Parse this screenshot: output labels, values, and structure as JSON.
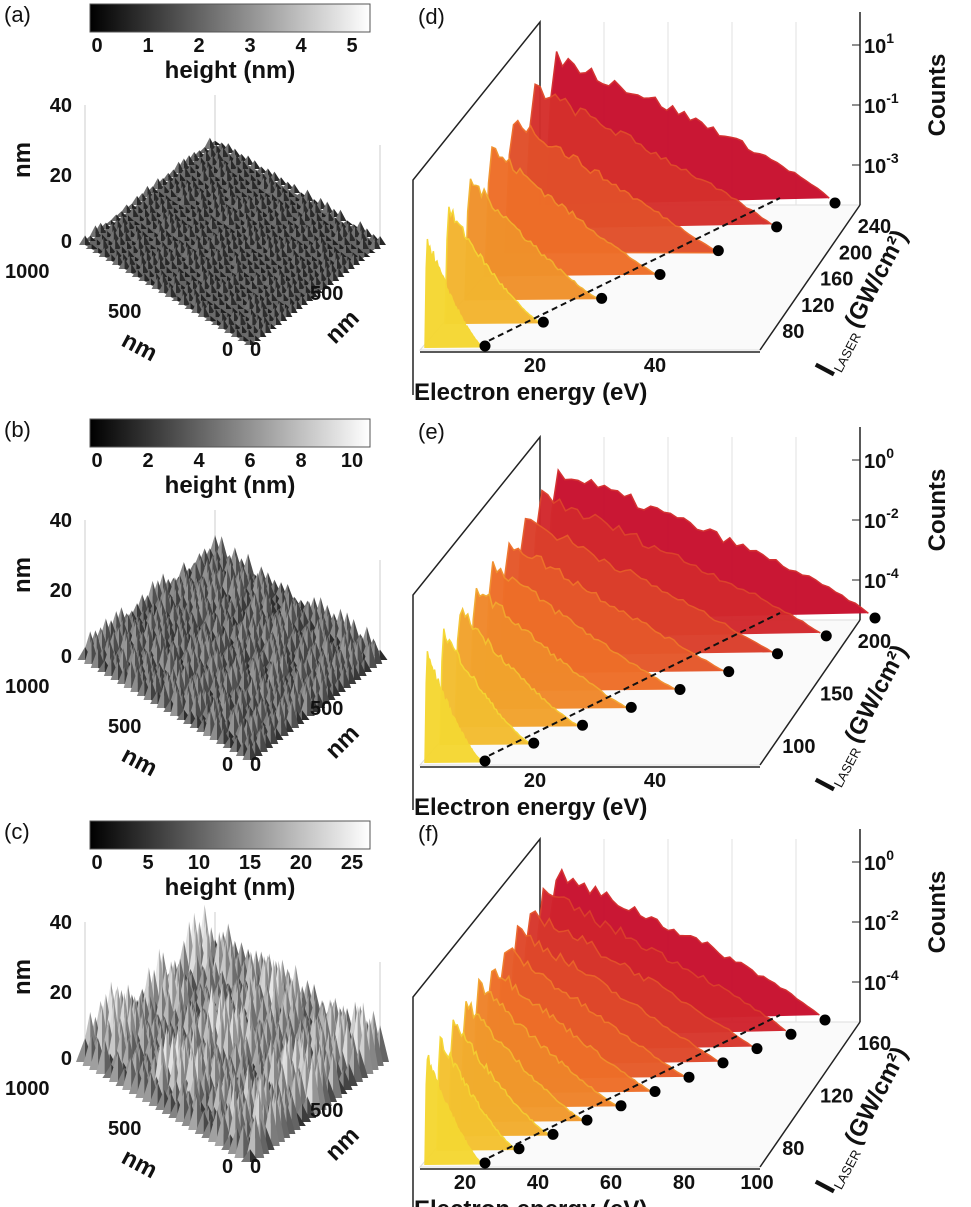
{
  "left_panels": [
    {
      "label": "(a)",
      "colorbar": {
        "title": "height (nm)",
        "ticks": [
          "0",
          "1",
          "2",
          "3",
          "4",
          "5"
        ]
      },
      "z_axis": {
        "label": "nm",
        "ticks": [
          "40",
          "20",
          "0"
        ]
      },
      "left_axis": {
        "label": "nm",
        "ticks": [
          "1000",
          "500",
          "0"
        ]
      },
      "right_axis": {
        "label": "nm",
        "ticks": [
          "0",
          "500"
        ]
      }
    },
    {
      "label": "(b)",
      "colorbar": {
        "title": "height (nm)",
        "ticks": [
          "0",
          "2",
          "4",
          "6",
          "8",
          "10"
        ]
      },
      "z_axis": {
        "label": "nm",
        "ticks": [
          "40",
          "20",
          "0"
        ]
      },
      "left_axis": {
        "label": "nm",
        "ticks": [
          "1000",
          "500",
          "0"
        ]
      },
      "right_axis": {
        "label": "nm",
        "ticks": [
          "0",
          "500"
        ]
      }
    },
    {
      "label": "(c)",
      "colorbar": {
        "title": "height (nm)",
        "ticks": [
          "0",
          "5",
          "10",
          "15",
          "20",
          "25"
        ]
      },
      "z_axis": {
        "label": "nm",
        "ticks": [
          "40",
          "20",
          "0"
        ]
      },
      "left_axis": {
        "label": "nm",
        "ticks": [
          "1000",
          "500",
          "0"
        ]
      },
      "right_axis": {
        "label": "nm",
        "ticks": [
          "0",
          "500"
        ]
      }
    }
  ],
  "right_panels": [
    {
      "label": "(d)",
      "counts_axis": {
        "label": "Counts",
        "ticks": [
          {
            "base": "10",
            "exp": "1"
          },
          {
            "base": "10",
            "exp": "-1"
          },
          {
            "base": "10",
            "exp": "-3"
          }
        ]
      },
      "intensity_axis": {
        "symbol": "I",
        "subscript": "LASER",
        "unit": "(GW/cm²)",
        "ticks": [
          "240",
          "200",
          "160",
          "120",
          "80"
        ]
      },
      "x_axis": {
        "label": "Electron energy (eV)",
        "ticks": [
          "20",
          "40"
        ]
      }
    },
    {
      "label": "(e)",
      "counts_axis": {
        "label": "Counts",
        "ticks": [
          {
            "base": "10",
            "exp": "0"
          },
          {
            "base": "10",
            "exp": "-2"
          },
          {
            "base": "10",
            "exp": "-4"
          }
        ]
      },
      "intensity_axis": {
        "symbol": "I",
        "subscript": "LASER",
        "unit": "(GW/cm²)",
        "ticks": [
          "200",
          "150",
          "100"
        ]
      },
      "x_axis": {
        "label": "Electron energy (eV)",
        "ticks": [
          "20",
          "40"
        ]
      }
    },
    {
      "label": "(f)",
      "counts_axis": {
        "label": "Counts",
        "ticks": [
          {
            "base": "10",
            "exp": "0"
          },
          {
            "base": "10",
            "exp": "-2"
          },
          {
            "base": "10",
            "exp": "-4"
          }
        ]
      },
      "intensity_axis": {
        "symbol": "I",
        "subscript": "LASER",
        "unit": "(GW/cm²)",
        "ticks": [
          "160",
          "120",
          "80"
        ]
      },
      "x_axis": {
        "label": "Electron energy (eV)",
        "ticks": [
          "20",
          "40",
          "60",
          "80",
          "100"
        ]
      }
    }
  ]
}
